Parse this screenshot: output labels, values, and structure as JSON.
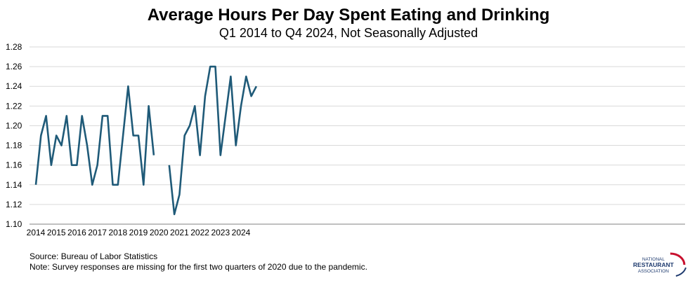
{
  "chart_data": {
    "type": "line",
    "title": "Average Hours Per Day Spent Eating and Drinking",
    "subtitle": "Q1 2014 to Q4 2024, Not Seasonally Adjusted",
    "x_tick_labels": [
      "2014",
      "2015",
      "2016",
      "2017",
      "2018",
      "2019",
      "2020",
      "2021",
      "2022",
      "2023",
      "2024"
    ],
    "y_tick_labels": [
      "1.10",
      "1.12",
      "1.14",
      "1.16",
      "1.18",
      "1.20",
      "1.22",
      "1.24",
      "1.26",
      "1.28"
    ],
    "ylim": [
      1.1,
      1.28
    ],
    "grid": true,
    "line_color": "#1f5a78",
    "grid_color": "#d9d9d9",
    "series": [
      {
        "values": [
          1.14,
          1.19,
          1.21,
          1.16,
          1.19,
          1.18,
          1.21,
          1.16,
          1.16,
          1.21,
          1.18,
          1.14,
          1.16,
          1.21,
          1.21,
          1.14,
          1.14,
          1.19,
          1.24,
          1.19,
          1.19,
          1.14,
          1.22,
          1.17,
          null,
          null,
          1.16,
          1.11,
          1.13,
          1.19,
          1.2,
          1.22,
          1.17,
          1.23,
          1.26,
          1.26,
          1.17,
          1.21,
          1.25,
          1.18,
          1.22,
          1.25,
          1.23,
          1.24
        ]
      }
    ]
  },
  "footnotes": {
    "source": "Source: Bureau of Labor Statistics",
    "note": "Note: Survey  responses are missing for the first two quarters of 2020 due to the pandemic."
  },
  "logo": {
    "line1": "NATIONAL",
    "line2": "RESTAURANT",
    "line3": "ASSOCIATION"
  }
}
